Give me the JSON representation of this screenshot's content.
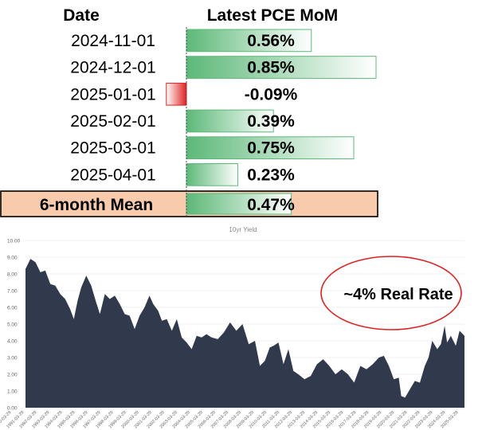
{
  "chart_data": [
    {
      "type": "table",
      "columns": [
        "Date",
        "Latest PCE MoM"
      ],
      "rows": [
        {
          "date": "2024-11-01",
          "value": 0.56,
          "label": "0.56%"
        },
        {
          "date": "2024-12-01",
          "value": 0.85,
          "label": "0.85%"
        },
        {
          "date": "2025-01-01",
          "value": -0.09,
          "label": "-0.09%"
        },
        {
          "date": "2025-02-01",
          "value": 0.39,
          "label": "0.39%"
        },
        {
          "date": "2025-03-01",
          "value": 0.75,
          "label": "0.75%"
        },
        {
          "date": "2025-04-01",
          "value": 0.23,
          "label": "0.23%"
        }
      ],
      "summary": {
        "label": "6-month Mean",
        "value": 0.47,
        "display": "0.47%"
      },
      "colors": {
        "positive": "#5cb878",
        "negative": "#e02020",
        "summary_fill": "#f8cbad",
        "summary_border": "#000000"
      }
    },
    {
      "type": "area",
      "title": "10yr Yield",
      "ylim": [
        0,
        10
      ],
      "yticks": [
        "0.00",
        "1.00",
        "2.00",
        "3.00",
        "4.00",
        "5.00",
        "6.00",
        "7.00",
        "8.00",
        "9.00",
        "10.00"
      ],
      "xlim": [
        1990.0,
        2025.4
      ],
      "xticks": [
        "1990-03-29",
        "1991-03-29",
        "1992-03-29",
        "1993-03-29",
        "1994-03-29",
        "1995-03-29",
        "1996-03-29",
        "1997-03-29",
        "1998-03-29",
        "1999-03-29",
        "2000-03-29",
        "2001-03-29",
        "2002-03-29",
        "2003-03-29",
        "2004-03-29",
        "2005-03-29",
        "2006-03-29",
        "2007-03-29",
        "2008-03-29",
        "2009-03-29",
        "2010-03-29",
        "2011-03-29",
        "2012-03-29",
        "2013-03-29",
        "2014-03-29",
        "2015-03-29",
        "2016-03-29",
        "2017-03-29",
        "2018-03-29",
        "2019-03-29",
        "2020-03-29",
        "2021-03-29",
        "2022-03-29",
        "2023-03-29",
        "2024-03-29",
        "2025-03-29"
      ],
      "x": [
        1990.0,
        1990.4,
        1990.8,
        1991.2,
        1991.6,
        1992.0,
        1992.4,
        1992.8,
        1993.2,
        1993.6,
        1993.9,
        1994.2,
        1994.5,
        1994.9,
        1995.3,
        1995.7,
        1996.0,
        1996.4,
        1996.8,
        1997.2,
        1997.6,
        1998.0,
        1998.4,
        1998.8,
        1999.2,
        1999.6,
        2000.0,
        2000.3,
        2000.7,
        2001.0,
        2001.4,
        2001.8,
        2002.2,
        2002.6,
        2003.0,
        2003.4,
        2003.8,
        2004.2,
        2004.6,
        2005.0,
        2005.5,
        2006.0,
        2006.5,
        2007.0,
        2007.5,
        2008.0,
        2008.5,
        2008.9,
        2009.3,
        2009.7,
        2010.0,
        2010.4,
        2010.8,
        2011.2,
        2011.6,
        2012.0,
        2012.5,
        2013.0,
        2013.5,
        2014.0,
        2014.5,
        2015.0,
        2015.5,
        2016.0,
        2016.5,
        2017.0,
        2017.5,
        2018.0,
        2018.5,
        2018.9,
        2019.3,
        2019.7,
        2020.1,
        2020.3,
        2020.6,
        2021.0,
        2021.4,
        2021.8,
        2022.2,
        2022.5,
        2022.8,
        2023.2,
        2023.5,
        2023.8,
        2024.0,
        2024.3,
        2024.7,
        2025.0,
        2025.4
      ],
      "values": [
        8.3,
        8.9,
        8.7,
        8.1,
        8.2,
        7.4,
        7.3,
        6.8,
        6.5,
        5.9,
        5.3,
        6.4,
        7.2,
        7.9,
        7.3,
        6.3,
        5.6,
        6.8,
        6.5,
        6.7,
        6.2,
        5.6,
        5.5,
        4.7,
        5.5,
        6.0,
        6.7,
        6.2,
        5.8,
        5.2,
        5.3,
        4.6,
        5.3,
        4.2,
        3.9,
        3.5,
        4.3,
        4.2,
        4.4,
        4.2,
        4.1,
        4.5,
        5.1,
        4.6,
        5.0,
        3.8,
        4.0,
        2.5,
        2.8,
        3.6,
        3.7,
        3.9,
        2.6,
        3.5,
        2.2,
        2.0,
        1.7,
        1.9,
        2.6,
        2.9,
        2.5,
        2.0,
        2.3,
        2.0,
        1.5,
        2.5,
        2.3,
        2.6,
        3.0,
        3.1,
        2.5,
        1.7,
        1.8,
        0.7,
        0.6,
        1.1,
        1.6,
        1.5,
        2.5,
        3.0,
        4.0,
        3.5,
        3.8,
        4.9,
        3.9,
        4.3,
        3.7,
        4.6,
        4.3
      ],
      "color": "#313a4d",
      "annotation": "~4% Real Rate"
    }
  ]
}
